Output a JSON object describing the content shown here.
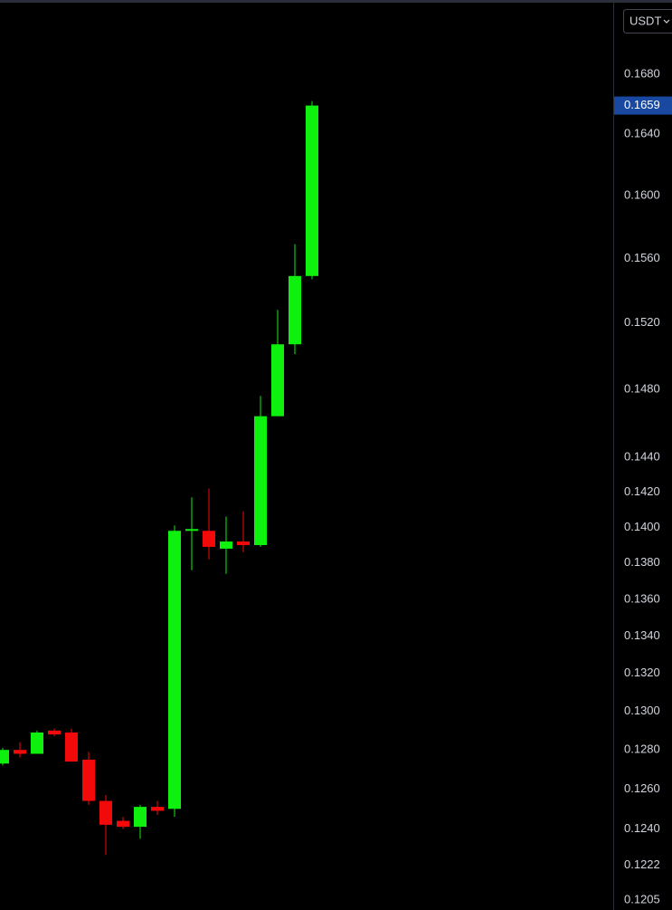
{
  "chart_data": {
    "type": "candlestick",
    "currency_selector": "USDT",
    "log_scale": true,
    "up_color": "#0ef00e",
    "down_color": "#f20a0a",
    "categories": [
      null,
      null,
      null,
      null,
      null,
      null,
      null,
      null,
      null,
      null,
      null,
      null,
      null,
      null,
      null,
      null,
      null,
      null,
      null
    ],
    "open": [
      0.1273,
      0.128,
      0.1278,
      0.129,
      0.1289,
      0.1275,
      0.1254,
      0.1244,
      0.1241,
      0.1251,
      0.125,
      0.1398,
      0.1398,
      0.1388,
      0.1392,
      0.139,
      0.1464,
      0.1507,
      0.1549
    ],
    "high": [
      0.1281,
      0.1284,
      0.129,
      0.1291,
      0.1291,
      0.1279,
      0.1257,
      0.1246,
      0.1252,
      0.1254,
      0.1401,
      0.1417,
      0.1422,
      0.1406,
      0.1409,
      0.1476,
      0.1528,
      0.1569,
      0.1662
    ],
    "low": [
      0.1272,
      0.1276,
      0.1278,
      0.1287,
      0.1274,
      0.1252,
      0.1227,
      0.124,
      0.1235,
      0.1247,
      0.1246,
      0.1376,
      0.1382,
      0.1374,
      0.1386,
      0.1389,
      0.1464,
      0.1501,
      0.1547
    ],
    "close": [
      0.128,
      0.1278,
      0.1289,
      0.1288,
      0.1274,
      0.1254,
      0.1242,
      0.1241,
      0.1251,
      0.1249,
      0.1398,
      0.1399,
      0.1389,
      0.1392,
      0.139,
      0.1464,
      0.1507,
      0.1549,
      0.1659
    ],
    "last_price": {
      "value": 0.1659,
      "label": "0.1659",
      "color": "#1848a0"
    },
    "ylim": [
      0.1201,
      0.1731
    ],
    "yticks": [
      {
        "value": 0.168,
        "label": "0.1680"
      },
      {
        "value": 0.164,
        "label": "0.1640"
      },
      {
        "value": 0.16,
        "label": "0.1600"
      },
      {
        "value": 0.156,
        "label": "0.1560"
      },
      {
        "value": 0.152,
        "label": "0.1520"
      },
      {
        "value": 0.148,
        "label": "0.1480"
      },
      {
        "value": 0.144,
        "label": "0.1440"
      },
      {
        "value": 0.142,
        "label": "0.1420"
      },
      {
        "value": 0.14,
        "label": "0.1400"
      },
      {
        "value": 0.138,
        "label": "0.1380"
      },
      {
        "value": 0.136,
        "label": "0.1360"
      },
      {
        "value": 0.134,
        "label": "0.1340"
      },
      {
        "value": 0.132,
        "label": "0.1320"
      },
      {
        "value": 0.13,
        "label": "0.1300"
      },
      {
        "value": 0.128,
        "label": "0.1280"
      },
      {
        "value": 0.126,
        "label": "0.1260"
      },
      {
        "value": 0.124,
        "label": "0.1240"
      },
      {
        "value": 0.1222,
        "label": "0.1222"
      },
      {
        "value": 0.1205,
        "label": "0.1205"
      }
    ]
  }
}
